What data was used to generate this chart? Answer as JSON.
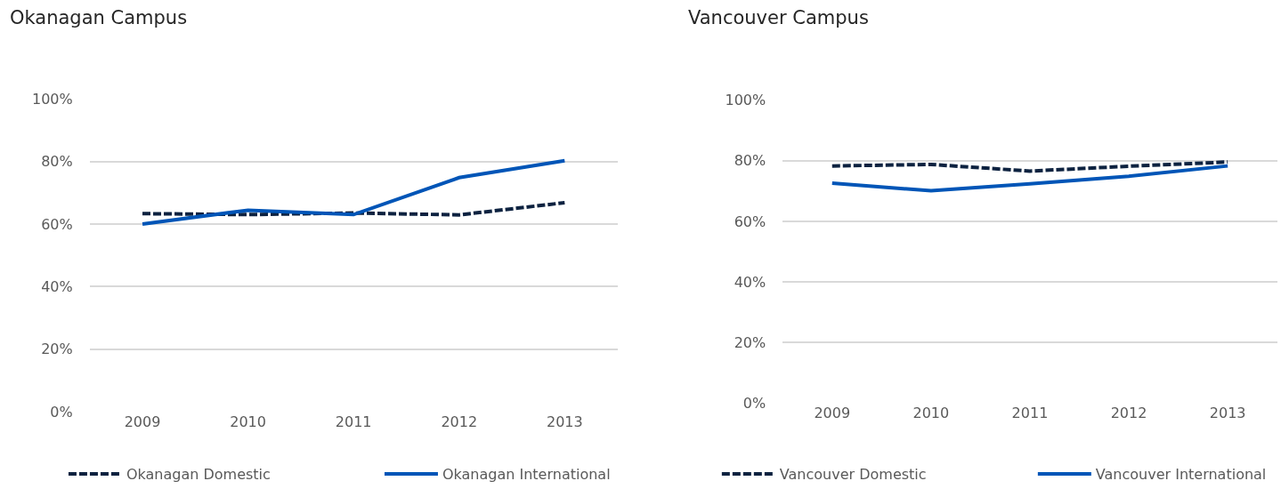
{
  "chart_data": [
    {
      "type": "line",
      "title": "Okanagan Campus",
      "categories": [
        "2009",
        "2010",
        "2011",
        "2012",
        "2013"
      ],
      "series": [
        {
          "name": "Okanagan Domestic",
          "color": "#0d2240",
          "line_style": "dashed",
          "values": [
            63.3,
            63,
            63.5,
            62.9,
            66.8
          ]
        },
        {
          "name": "Okanagan International",
          "color": "#0055b7",
          "line_style": "solid",
          "values": [
            60,
            64.4,
            63,
            74.8,
            80.2
          ]
        }
      ],
      "ylim": [
        0,
        100
      ],
      "yticks": [
        {
          "value": 0,
          "label": "0%"
        },
        {
          "value": 20,
          "label": "20%"
        },
        {
          "value": 40,
          "label": "40%"
        },
        {
          "value": 60,
          "label": "60%"
        },
        {
          "value": 80,
          "label": "80%"
        },
        {
          "value": 100,
          "label": "100%"
        }
      ],
      "grid": "y",
      "legend": "bottom",
      "marker": "none"
    },
    {
      "type": "line",
      "title": "Vancouver Campus",
      "categories": [
        "2009",
        "2010",
        "2011",
        "2012",
        "2013"
      ],
      "series": [
        {
          "name": "Vancouver Domestic",
          "color": "#0d2240",
          "line_style": "dashed",
          "values": [
            78.3,
            78.8,
            76.6,
            78.2,
            79.6
          ]
        },
        {
          "name": "Vancouver International",
          "color": "#0055b7",
          "line_style": "solid",
          "values": [
            72.6,
            70.1,
            72.4,
            74.9,
            78.3
          ]
        }
      ],
      "ylim": [
        0,
        100
      ],
      "yticks": [
        {
          "value": 0,
          "label": "0%"
        },
        {
          "value": 20,
          "label": "20%"
        },
        {
          "value": 40,
          "label": "40%"
        },
        {
          "value": 60,
          "label": "60%"
        },
        {
          "value": 80,
          "label": "80%"
        },
        {
          "value": 100,
          "label": "100%"
        }
      ],
      "grid": "y",
      "legend": "bottom",
      "marker": "none"
    }
  ]
}
